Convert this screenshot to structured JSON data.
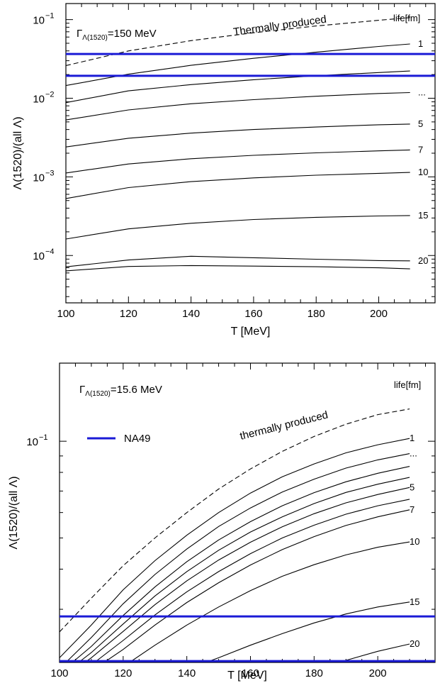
{
  "colors": {
    "curve": "#000000",
    "na49": "#1a1ad6"
  },
  "chart_data": [
    {
      "type": "line",
      "y_scale": "log",
      "xlabel": "T [MeV]",
      "ylabel": "Λ(1520)/(all Λ)",
      "xlim": [
        100,
        218
      ],
      "ylim": [
        2.5e-05,
        0.16
      ],
      "x_ticks": [
        100,
        120,
        140,
        160,
        180,
        200
      ],
      "x_tick_labels": [
        "100",
        "120",
        "140",
        "160",
        "180",
        "200"
      ],
      "y_ticks": [
        0.1,
        0.01,
        0.001,
        0.0001
      ],
      "y_tick_labels": [
        {
          "base": "10",
          "exp": "−1"
        },
        {
          "base": "10",
          "exp": "−2"
        },
        {
          "base": "10",
          "exp": "−3"
        },
        {
          "base": "10",
          "exp": "−4"
        }
      ],
      "gamma_label": {
        "symbol": "Γ",
        "subscript": "Λ(1520)",
        "value": "=150 MeV"
      },
      "thermal_label": "Thermally produced",
      "life_label": "life[fm]",
      "thermal": {
        "x": [
          100,
          120,
          140,
          160,
          180,
          200,
          210
        ],
        "y": [
          0.026,
          0.04,
          0.054,
          0.068,
          0.083,
          0.098,
          0.106
        ]
      },
      "series": [
        {
          "name": "1",
          "label": "1",
          "x": [
            100,
            120,
            140,
            160,
            180,
            200,
            210
          ],
          "y": [
            0.0145,
            0.0202,
            0.0262,
            0.0322,
            0.0385,
            0.0455,
            0.049
          ]
        },
        {
          "name": "2",
          "label": "",
          "x": [
            100,
            120,
            140,
            160,
            180,
            200,
            210
          ],
          "y": [
            0.0088,
            0.0124,
            0.0149,
            0.0172,
            0.0193,
            0.0212,
            0.0222
          ]
        },
        {
          "name": "3",
          "label": "...",
          "x": [
            100,
            120,
            140,
            160,
            180,
            200,
            210
          ],
          "y": [
            0.0053,
            0.0071,
            0.0085,
            0.0096,
            0.0106,
            0.0115,
            0.0118
          ]
        },
        {
          "name": "5",
          "label": "5",
          "x": [
            100,
            120,
            140,
            160,
            180,
            200,
            210
          ],
          "y": [
            0.0024,
            0.0031,
            0.0036,
            0.004,
            0.0043,
            0.0046,
            0.0047
          ]
        },
        {
          "name": "7",
          "label": "7",
          "x": [
            100,
            120,
            140,
            160,
            180,
            200,
            210
          ],
          "y": [
            0.00112,
            0.00146,
            0.0017,
            0.00188,
            0.00202,
            0.00214,
            0.0022
          ]
        },
        {
          "name": "10",
          "label": "10",
          "x": [
            100,
            120,
            140,
            160,
            180,
            200,
            210
          ],
          "y": [
            0.00053,
            0.00073,
            0.00087,
            0.00097,
            0.00105,
            0.00111,
            0.00114
          ]
        },
        {
          "name": "15",
          "label": "15",
          "x": [
            100,
            120,
            140,
            160,
            180,
            200,
            210
          ],
          "y": [
            0.000162,
            0.000218,
            0.000257,
            0.000287,
            0.000306,
            0.000318,
            0.000322
          ]
        },
        {
          "name": "20",
          "label": "20",
          "x": [
            100,
            120,
            140,
            160,
            180,
            200,
            210
          ],
          "y": [
            7.18e-05,
            8.76e-05,
            9.78e-05,
            9.36e-05,
            8.97e-05,
            8.62e-05,
            8.55e-05
          ]
        },
        {
          "name": "25",
          "label": "",
          "x": [
            100,
            120,
            140,
            160,
            180,
            200,
            210
          ],
          "y": [
            6.38e-05,
            7.25e-05,
            7.45e-05,
            7.33e-05,
            7.19e-05,
            6.97e-05,
            6.76e-05
          ]
        }
      ],
      "hlines": [
        0.0365,
        0.0193
      ]
    },
    {
      "type": "line",
      "y_scale": "log",
      "xlabel": "T [MeV]",
      "ylabel": "Λ(1520)/(all Λ)",
      "xlim": [
        100,
        218
      ],
      "ylim": [
        0.0205,
        0.175
      ],
      "x_ticks": [
        100,
        120,
        140,
        160,
        180,
        200
      ],
      "x_tick_labels": [
        "100",
        "120",
        "140",
        "160",
        "180",
        "200"
      ],
      "y_ticks": [
        0.1
      ],
      "y_tick_labels": [
        {
          "base": "10",
          "exp": "−1"
        }
      ],
      "gamma_label": {
        "symbol": "Γ",
        "subscript": "Λ(1520)",
        "value": "=15.6 MeV"
      },
      "thermal_label": "thermally produced",
      "life_label": "life[fm]",
      "legend": {
        "label": "NA49",
        "placement": "left"
      },
      "thermal": {
        "x": [
          100,
          110,
          120,
          130,
          140,
          150,
          160,
          170,
          180,
          190,
          200,
          210
        ],
        "y": [
          0.0255,
          0.0325,
          0.041,
          0.05,
          0.06,
          0.071,
          0.082,
          0.093,
          0.1035,
          0.113,
          0.121,
          0.126
        ]
      },
      "series": [
        {
          "name": "1",
          "label": "1",
          "x": [
            100,
            110,
            120,
            130,
            140,
            150,
            160,
            170,
            180,
            190,
            200,
            210
          ],
          "y": [
            0.0212,
            0.0268,
            0.0345,
            0.0425,
            0.051,
            0.06,
            0.069,
            0.0775,
            0.085,
            0.092,
            0.0975,
            0.102
          ]
        },
        {
          "name": "2",
          "label": "...",
          "x": [
            102,
            110,
            120,
            130,
            140,
            150,
            160,
            170,
            180,
            190,
            200,
            210
          ],
          "y": [
            0.0205,
            0.0245,
            0.0312,
            0.0385,
            0.0462,
            0.0543,
            0.062,
            0.0695,
            0.0762,
            0.0825,
            0.0875,
            0.0915
          ]
        },
        {
          "name": "3",
          "label": "",
          "x": [
            104,
            110,
            120,
            130,
            140,
            150,
            160,
            170,
            180,
            190,
            200,
            210
          ],
          "y": [
            0.0205,
            0.023,
            0.0287,
            0.0352,
            0.0422,
            0.0493,
            0.0562,
            0.063,
            0.0692,
            0.0748,
            0.0795,
            0.0835
          ]
        },
        {
          "name": "4",
          "label": "",
          "x": [
            106,
            110,
            120,
            130,
            140,
            150,
            160,
            170,
            180,
            190,
            200,
            210
          ],
          "y": [
            0.0205,
            0.022,
            0.027,
            0.033,
            0.0393,
            0.0458,
            0.0522,
            0.0582,
            0.064,
            0.0693,
            0.0735,
            0.0772
          ]
        },
        {
          "name": "5",
          "label": "5",
          "x": [
            108,
            110,
            120,
            130,
            140,
            150,
            160,
            170,
            180,
            190,
            200,
            210
          ],
          "y": [
            0.0205,
            0.0212,
            0.0256,
            0.031,
            0.0368,
            0.0427,
            0.0485,
            0.0542,
            0.0595,
            0.0643,
            0.0683,
            0.0718
          ]
        },
        {
          "name": "6",
          "label": "",
          "x": [
            111,
            120,
            130,
            140,
            150,
            160,
            170,
            180,
            190,
            200,
            210
          ],
          "y": [
            0.0205,
            0.024,
            0.0288,
            0.034,
            0.0393,
            0.0447,
            0.05,
            0.0548,
            0.0593,
            0.063,
            0.066
          ]
        },
        {
          "name": "7",
          "label": "7",
          "x": [
            114,
            120,
            130,
            140,
            150,
            160,
            170,
            180,
            190,
            200,
            210
          ],
          "y": [
            0.0205,
            0.0225,
            0.0268,
            0.0315,
            0.0363,
            0.0412,
            0.046,
            0.0505,
            0.0547,
            0.0582,
            0.0612
          ]
        },
        {
          "name": "10",
          "label": "10",
          "x": [
            122,
            130,
            140,
            150,
            160,
            170,
            180,
            190,
            200,
            210
          ],
          "y": [
            0.0205,
            0.0232,
            0.0268,
            0.0305,
            0.0343,
            0.038,
            0.0413,
            0.0443,
            0.0468,
            0.0486
          ]
        },
        {
          "name": "15",
          "label": "15",
          "x": [
            146,
            150,
            160,
            170,
            180,
            190,
            200,
            210
          ],
          "y": [
            0.0205,
            0.0212,
            0.0232,
            0.0252,
            0.0272,
            0.029,
            0.0305,
            0.0316
          ]
        },
        {
          "name": "20",
          "label": "20",
          "x": [
            188,
            190,
            200,
            210
          ],
          "y": [
            0.0205,
            0.0208,
            0.0222,
            0.0234
          ]
        }
      ],
      "hlines": [
        0.0285,
        0.0207
      ]
    }
  ]
}
